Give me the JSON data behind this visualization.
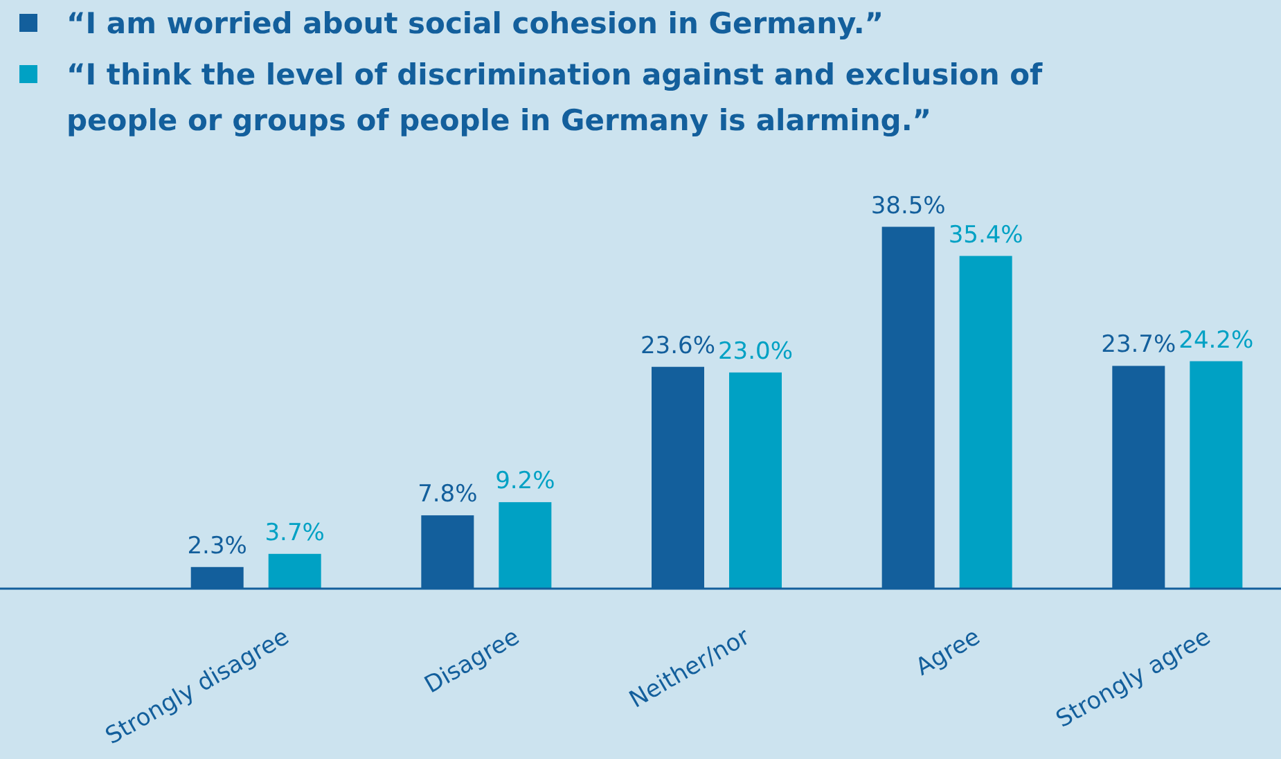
{
  "chart_data": {
    "type": "bar",
    "categories": [
      "Strongly disagree",
      "Disagree",
      "Neither/nor",
      "Agree",
      "Strongly agree"
    ],
    "series": [
      {
        "name": "“I am worried about social cohesion in Germany.”",
        "color": "#135f9c",
        "values": [
          2.3,
          7.8,
          23.6,
          38.5,
          23.7
        ],
        "value_labels": [
          "2.3%",
          "7.8%",
          "23.6%",
          "38.5%",
          "23.7%"
        ]
      },
      {
        "name": "“I think the level of discrimination against and exclusion of people or groups of people in Germany is alarming.”",
        "color": "#00a1c4",
        "values": [
          3.7,
          9.2,
          23.0,
          35.4,
          24.2
        ],
        "value_labels": [
          "3.7%",
          "9.2%",
          "23.0%",
          "35.4%",
          "24.2%"
        ]
      }
    ],
    "legend": "top left"
  }
}
